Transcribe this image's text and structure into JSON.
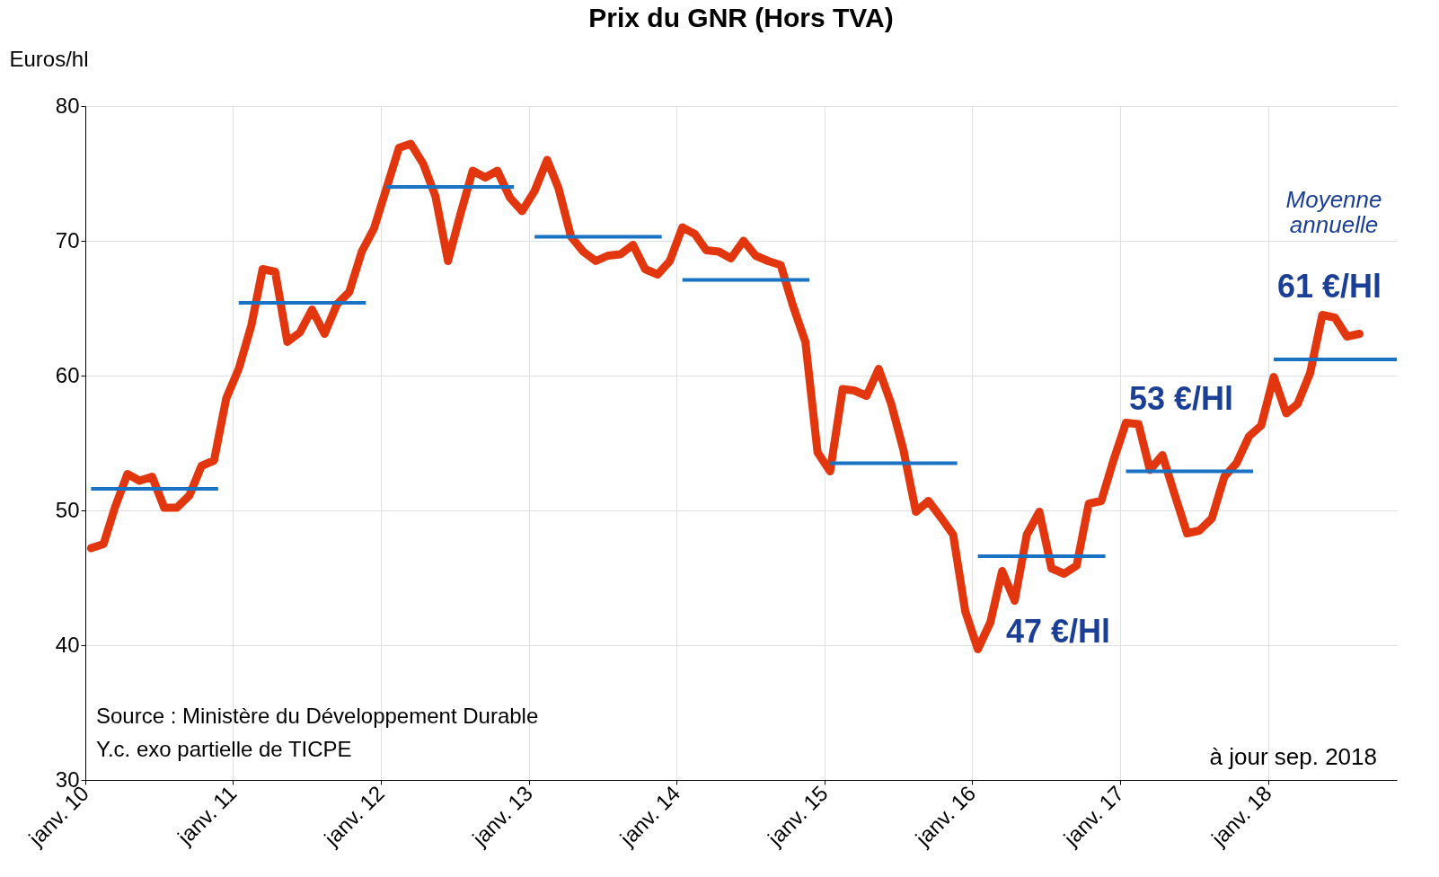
{
  "chart_data": {
    "type": "line",
    "title": "Prix du GNR  (Hors TVA)",
    "ylabel": "Euros/hl",
    "xlim": [
      "2010-01-01",
      "2018-11-15"
    ],
    "xticks": [
      {
        "value": "2010-01-01",
        "label": "janv. 10"
      },
      {
        "value": "2011-01-01",
        "label": "janv. 11"
      },
      {
        "value": "2012-01-01",
        "label": "janv. 12"
      },
      {
        "value": "2013-01-01",
        "label": "janv. 13"
      },
      {
        "value": "2014-01-01",
        "label": "janv. 14"
      },
      {
        "value": "2015-01-01",
        "label": "janv. 15"
      },
      {
        "value": "2016-01-01",
        "label": "janv. 16"
      },
      {
        "value": "2017-01-01",
        "label": "janv. 17"
      },
      {
        "value": "2018-01-01",
        "label": "janv. 18"
      }
    ],
    "ylim": [
      30,
      80
    ],
    "yticks": [
      30,
      40,
      50,
      60,
      70,
      80
    ],
    "grid": true,
    "line_style": "solid",
    "x": [
      "2010-01-15",
      "2010-02-15",
      "2010-03-15",
      "2010-04-15",
      "2010-05-15",
      "2010-06-15",
      "2010-07-15",
      "2010-08-15",
      "2010-09-15",
      "2010-10-15",
      "2010-11-15",
      "2010-12-15",
      "2011-01-15",
      "2011-02-15",
      "2011-03-15",
      "2011-04-15",
      "2011-05-15",
      "2011-06-15",
      "2011-07-15",
      "2011-08-15",
      "2011-09-15",
      "2011-10-15",
      "2011-11-15",
      "2011-12-15",
      "2012-01-15",
      "2012-02-15",
      "2012-03-15",
      "2012-04-15",
      "2012-05-15",
      "2012-06-15",
      "2012-07-15",
      "2012-08-15",
      "2012-09-15",
      "2012-10-15",
      "2012-11-15",
      "2012-12-15",
      "2013-01-15",
      "2013-02-15",
      "2013-03-15",
      "2013-04-15",
      "2013-05-15",
      "2013-06-15",
      "2013-07-15",
      "2013-08-15",
      "2013-09-15",
      "2013-10-15",
      "2013-11-15",
      "2013-12-15",
      "2014-01-15",
      "2014-02-15",
      "2014-03-15",
      "2014-04-15",
      "2014-05-15",
      "2014-06-15",
      "2014-07-15",
      "2014-08-15",
      "2014-09-15",
      "2014-10-15",
      "2014-11-15",
      "2014-12-15",
      "2015-01-15",
      "2015-02-15",
      "2015-03-15",
      "2015-04-15",
      "2015-05-15",
      "2015-06-15",
      "2015-07-15",
      "2015-08-15",
      "2015-09-15",
      "2015-10-15",
      "2015-11-15",
      "2015-12-15",
      "2016-01-15",
      "2016-02-15",
      "2016-03-15",
      "2016-04-15",
      "2016-05-15",
      "2016-06-15",
      "2016-07-15",
      "2016-08-15",
      "2016-09-15",
      "2016-10-15",
      "2016-11-15",
      "2016-12-15",
      "2017-01-15",
      "2017-02-15",
      "2017-03-15",
      "2017-04-15",
      "2017-05-15",
      "2017-06-15",
      "2017-07-15",
      "2017-08-15",
      "2017-09-15",
      "2017-10-15",
      "2017-11-15",
      "2017-12-15",
      "2018-01-15",
      "2018-02-15",
      "2018-03-15",
      "2018-04-15",
      "2018-05-15",
      "2018-06-15",
      "2018-07-15",
      "2018-08-15"
    ],
    "series": [
      {
        "color": "#e2360e",
        "values": [
          47.2,
          47.5,
          50.2,
          52.7,
          52.2,
          52.5,
          50.2,
          50.2,
          51.1,
          53.3,
          53.7,
          58.3,
          60.5,
          63.7,
          67.9,
          67.7,
          62.5,
          63.2,
          64.9,
          63.1,
          65.3,
          66.2,
          69.2,
          70.9,
          73.9,
          76.9,
          77.2,
          75.7,
          73.3,
          68.5,
          71.9,
          75.2,
          74.7,
          75.2,
          73.2,
          72.2,
          73.7,
          76.0,
          73.9,
          70.3,
          69.2,
          68.5,
          68.9,
          69.0,
          69.7,
          67.9,
          67.5,
          68.5,
          71.0,
          70.5,
          69.3,
          69.2,
          68.7,
          70.0,
          68.9,
          68.5,
          68.2,
          65.2,
          62.5,
          54.3,
          52.9,
          59.0,
          58.9,
          58.5,
          60.5,
          57.9,
          54.5,
          49.9,
          50.7,
          49.5,
          48.2,
          42.5,
          39.7,
          41.7,
          45.5,
          43.3,
          48.2,
          49.9,
          45.7,
          45.3,
          45.9,
          50.5,
          50.7,
          53.7,
          56.5,
          56.4,
          53.0,
          54.1,
          51.2,
          48.3,
          48.5,
          49.4,
          52.5,
          53.5,
          55.5,
          56.3,
          59.9,
          57.2,
          57.9,
          60.2,
          64.5,
          64.3,
          62.9,
          63.1
        ]
      },
      {
        "type": "line",
        "color": "#1a72c2",
        "x": [
          "2010-01-15",
          "2010-11-25"
        ],
        "values": [
          51.6,
          51.6
        ]
      },
      {
        "type": "line",
        "color": "#1a72c2",
        "x": [
          "2011-01-15",
          "2011-11-25"
        ],
        "values": [
          65.4,
          65.4
        ]
      },
      {
        "type": "line",
        "color": "#1a72c2",
        "x": [
          "2012-01-15",
          "2012-11-25"
        ],
        "values": [
          74.0,
          74.0
        ]
      },
      {
        "type": "line",
        "color": "#1a72c2",
        "x": [
          "2013-01-15",
          "2013-11-25"
        ],
        "values": [
          70.3,
          70.3
        ]
      },
      {
        "type": "line",
        "color": "#1a72c2",
        "x": [
          "2014-01-15",
          "2014-11-25"
        ],
        "values": [
          67.1,
          67.1
        ]
      },
      {
        "type": "line",
        "color": "#1a72c2",
        "x": [
          "2015-01-15",
          "2015-11-25"
        ],
        "values": [
          53.5,
          53.5
        ]
      },
      {
        "type": "line",
        "color": "#1a72c2",
        "x": [
          "2016-01-15",
          "2016-11-25"
        ],
        "values": [
          46.6,
          46.6
        ]
      },
      {
        "type": "line",
        "color": "#1a72c2",
        "x": [
          "2017-01-15",
          "2017-11-25"
        ],
        "values": [
          52.9,
          52.9
        ]
      },
      {
        "type": "line",
        "color": "#1a72c2",
        "x": [
          "2018-01-15",
          "2018-11-15"
        ],
        "values": [
          61.2,
          61.2
        ]
      }
    ],
    "annotations": [
      "47 €/Hl",
      "53 €/Hl",
      "61 €/Hl",
      "Moyenne annuelle",
      "Source :  Ministère du Développement Durable",
      "Y.c. exo partielle de TICPE",
      "à jour sep. 2018"
    ]
  }
}
